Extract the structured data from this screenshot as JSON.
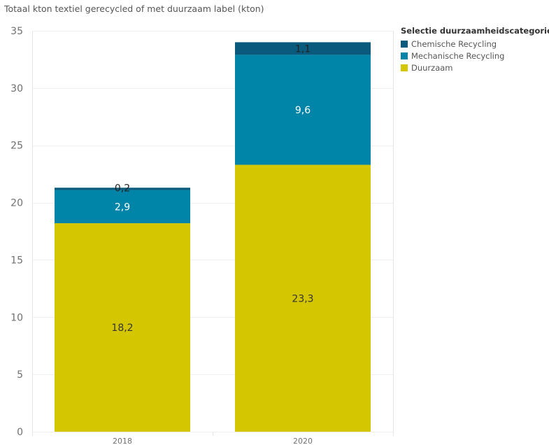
{
  "chart_data": {
    "type": "bar",
    "stacked": true,
    "title": "Totaal kton textiel gerecycled of met duurzaam label (kton)",
    "categories": [
      "2018",
      "2020"
    ],
    "series": [
      {
        "name": "Duurzaam",
        "color": "#d4c600",
        "label_color": "#333333",
        "values": [
          18.2,
          23.3
        ],
        "labels": [
          "18,2",
          "23,3"
        ]
      },
      {
        "name": "Mechanische Recycling",
        "color": "#0085a8",
        "label_color": "#ffffff",
        "values": [
          2.9,
          9.6
        ],
        "labels": [
          "2,9",
          "9,6"
        ]
      },
      {
        "name": "Chemische Recycling",
        "color": "#0a5a7e",
        "label_color": "#222222",
        "values": [
          0.2,
          1.1
        ],
        "labels": [
          "0,2",
          "1,1"
        ]
      }
    ],
    "legend_title": "Selectie duurzaamheidscategorie",
    "legend_order": [
      "Chemische Recycling",
      "Mechanische Recycling",
      "Duurzaam"
    ],
    "legend_position": "top-right",
    "ylim": [
      0,
      35
    ],
    "yticks": [
      0,
      5,
      10,
      15,
      20,
      25,
      30,
      35
    ],
    "grid": true
  }
}
